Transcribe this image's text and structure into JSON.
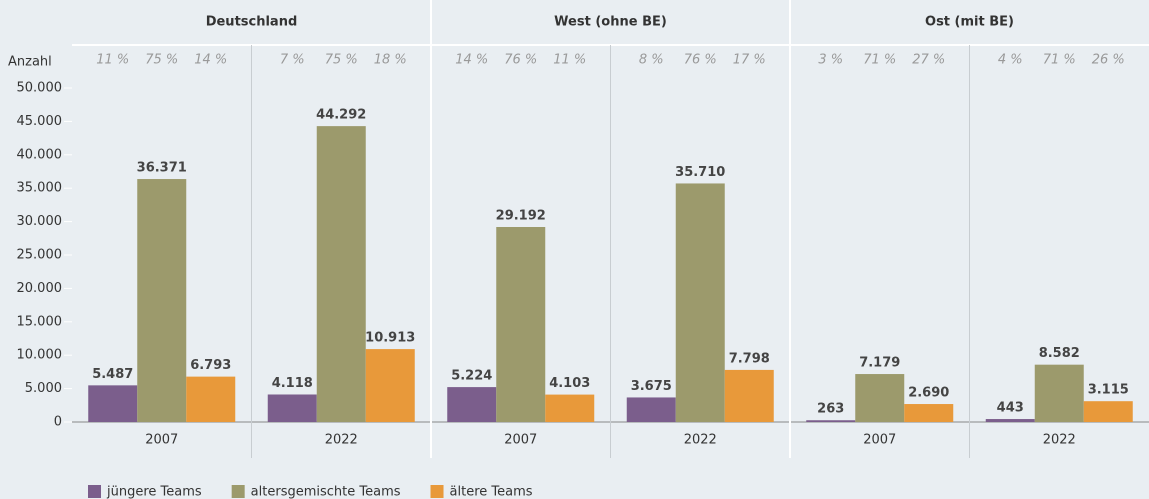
{
  "chart_data": {
    "type": "bar",
    "ylabel": "Anzahl",
    "groups": [
      "Deutschland",
      "West (ohne BE)",
      "Ost (mit BE)"
    ],
    "categories": [
      "2007",
      "2022",
      "2007",
      "2022",
      "2007",
      "2022"
    ],
    "ylim": [
      0,
      50000
    ],
    "yticks": [
      0,
      {
        "value": 5000,
        "label": "5.000"
      },
      {
        "value": 10000,
        "label": "10.000"
      },
      {
        "value": 15000,
        "label": "15.000"
      },
      {
        "value": 20000,
        "label": "20.000"
      },
      {
        "value": 25000,
        "label": "25.000"
      },
      {
        "value": 30000,
        "label": "30.000"
      },
      {
        "value": 35000,
        "label": "35.000"
      },
      {
        "value": 40000,
        "label": "40.000"
      },
      {
        "value": 45000,
        "label": "45.000"
      },
      {
        "value": 50000,
        "label": "50.000"
      }
    ],
    "series": [
      {
        "name": "jüngere Teams",
        "color": "#7b5e8c",
        "values": [
          5487,
          4118,
          5224,
          3675,
          263,
          443
        ],
        "value_labels": [
          "5.487",
          "4.118",
          "5.224",
          "3.675",
          "263",
          "443"
        ],
        "share_labels": [
          "11 %",
          "7 %",
          "14 %",
          "8 %",
          "3 %",
          "4 %"
        ]
      },
      {
        "name": "altersgemischte Teams",
        "color": "#9c9a6c",
        "values": [
          36371,
          44292,
          29192,
          35710,
          7179,
          8582
        ],
        "value_labels": [
          "36.371",
          "44.292",
          "29.192",
          "35.710",
          "7.179",
          "8.582"
        ],
        "share_labels": [
          "75 %",
          "75 %",
          "76 %",
          "76 %",
          "71 %",
          "71 %"
        ]
      },
      {
        "name": "ältere Teams",
        "color": "#e8993a",
        "values": [
          6793,
          10913,
          4103,
          7798,
          2690,
          3115
        ],
        "value_labels": [
          "6.793",
          "10.913",
          "4.103",
          "7.798",
          "2.690",
          "3.115"
        ],
        "share_labels": [
          "14 %",
          "18 %",
          "11 %",
          "17 %",
          "27 %",
          "26 %"
        ]
      }
    ]
  }
}
